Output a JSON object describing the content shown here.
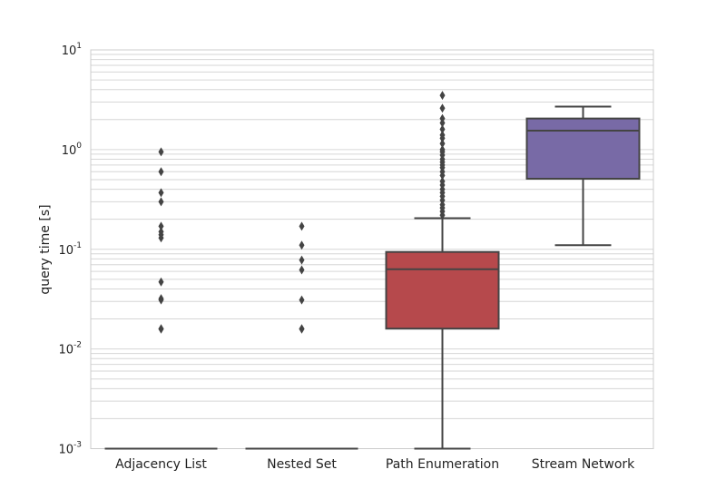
{
  "chart_data": {
    "type": "box",
    "title": "",
    "xlabel": "",
    "ylabel": "query time [s]",
    "yscale": "log",
    "ylim": [
      0.001,
      10
    ],
    "grid": true,
    "y_ticks": [
      {
        "value": 0.001,
        "base": "10",
        "exp": "-3"
      },
      {
        "value": 0.01,
        "base": "10",
        "exp": "-2"
      },
      {
        "value": 0.1,
        "base": "10",
        "exp": "-1"
      },
      {
        "value": 1,
        "base": "10",
        "exp": "0"
      },
      {
        "value": 10,
        "base": "10",
        "exp": "1"
      }
    ],
    "categories": [
      "Adjacency List",
      "Nested Set",
      "Path Enumeration",
      "Stream Network"
    ],
    "boxes": [
      {
        "category": "Adjacency List",
        "color": "#4c72b0",
        "whisker_low": 0.001,
        "q1": 0.001,
        "median": 0.001,
        "q3": 0.001,
        "whisker_high": 0.001,
        "outliers": [
          0.95,
          0.6,
          0.37,
          0.3,
          0.17,
          0.15,
          0.14,
          0.13,
          0.047,
          0.032,
          0.031,
          0.016,
          0.0158
        ]
      },
      {
        "category": "Nested Set",
        "color": "#55a868",
        "whisker_low": 0.001,
        "q1": 0.001,
        "median": 0.001,
        "q3": 0.001,
        "whisker_high": 0.001,
        "outliers": [
          0.17,
          0.11,
          0.078,
          0.062,
          0.031,
          0.016,
          0.0158
        ]
      },
      {
        "category": "Path Enumeration",
        "color": "#c44e52",
        "whisker_low": 0.001,
        "q1": 0.016,
        "median": 0.063,
        "q3": 0.094,
        "whisker_high": 0.205,
        "outliers": [
          3.5,
          2.6,
          2.05,
          1.85,
          1.6,
          1.4,
          1.3,
          1.15,
          1.0,
          0.95,
          0.88,
          0.8,
          0.75,
          0.7,
          0.66,
          0.6,
          0.55,
          0.48,
          0.44,
          0.4,
          0.37,
          0.34,
          0.31,
          0.28,
          0.26,
          0.24,
          0.22
        ]
      },
      {
        "category": "Stream Network",
        "color": "#8172b2",
        "whisker_low": 0.11,
        "q1": 0.51,
        "median": 1.55,
        "q3": 2.05,
        "whisker_high": 2.7,
        "outliers": []
      }
    ]
  }
}
